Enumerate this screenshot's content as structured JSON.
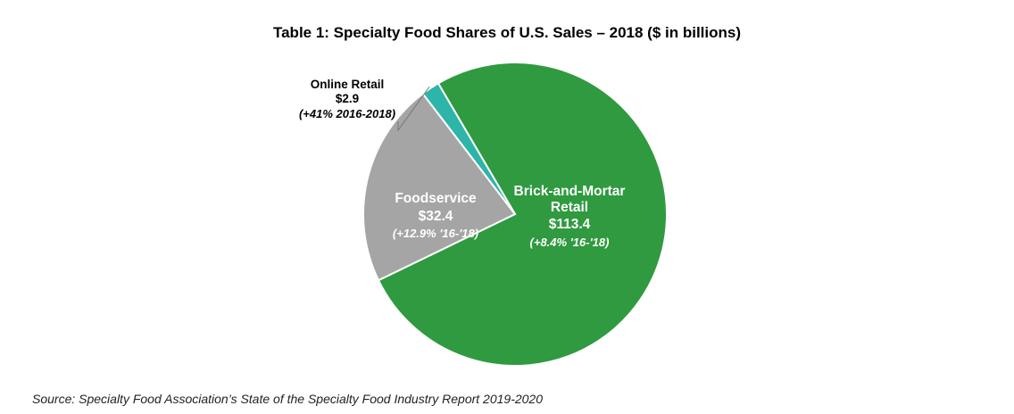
{
  "chart_data": {
    "type": "pie",
    "title": "Table 1: Specialty Food Shares of U.S. Sales – 2018 ($ in billions)",
    "source": "Source: Specialty Food Association’s State of the Specialty Food Industry Report 2019-2020",
    "slices": [
      {
        "label_lines": [
          "Brick-and-Mortar",
          "Retail"
        ],
        "value_label": "$113.4",
        "value": 113.4,
        "growth_label": "(+8.4% '16-'18)",
        "color": "#2f9a3f"
      },
      {
        "label_lines": [
          "Foodservice"
        ],
        "value_label": "$32.4",
        "value": 32.4,
        "growth_label": "(+12.9% '16-'18)",
        "color": "#a5a5a5"
      },
      {
        "label_lines": [
          "Online Retail"
        ],
        "value_label": "$2.9",
        "value": 2.9,
        "growth_label": "(+41% 2016-2018)",
        "color": "#2cb5a8"
      }
    ]
  }
}
